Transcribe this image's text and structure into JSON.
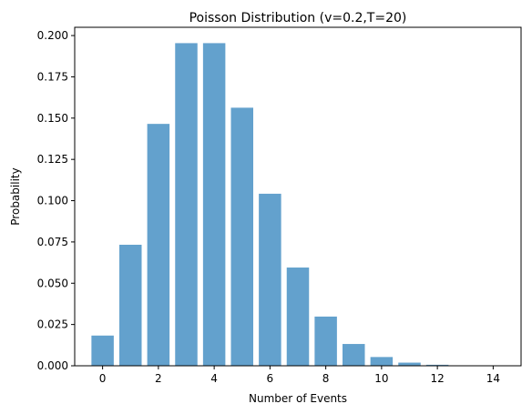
{
  "chart_data": {
    "type": "bar",
    "title": "Poisson Distribution (v=0.2,T=20)",
    "xlabel": "Number of Events",
    "ylabel": "Probability",
    "x": [
      0,
      1,
      2,
      3,
      4,
      5,
      6,
      7,
      8,
      9,
      10,
      11,
      12,
      13,
      14
    ],
    "values": [
      0.0183,
      0.0733,
      0.1465,
      0.1954,
      0.1954,
      0.1563,
      0.1042,
      0.0595,
      0.0298,
      0.0132,
      0.0053,
      0.0019,
      0.0006,
      0.0002,
      0.0001
    ],
    "xlim": [
      -1,
      15
    ],
    "ylim": [
      0,
      0.205
    ],
    "x_ticks": [
      0,
      2,
      4,
      6,
      8,
      10,
      12,
      14
    ],
    "x_tick_labels": [
      "0",
      "2",
      "4",
      "6",
      "8",
      "10",
      "12",
      "14"
    ],
    "y_ticks": [
      0,
      0.025,
      0.05,
      0.075,
      0.1,
      0.125,
      0.15,
      0.175,
      0.2
    ],
    "y_tick_labels": [
      "0.000",
      "0.025",
      "0.050",
      "0.075",
      "0.100",
      "0.125",
      "0.150",
      "0.175",
      "0.200"
    ],
    "bar_color": "#63A1CD",
    "grid": false,
    "legend": false
  }
}
